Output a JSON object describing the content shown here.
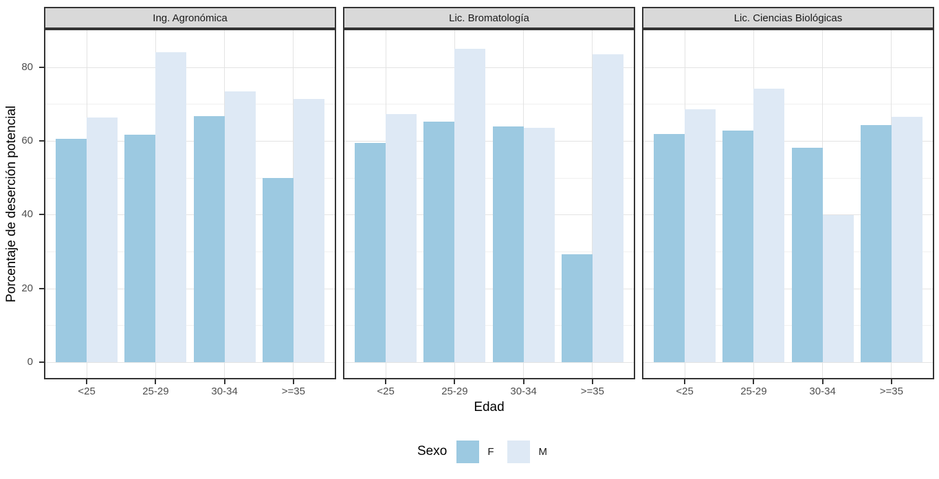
{
  "chart_data": {
    "type": "bar",
    "title": "",
    "x_title": "Edad",
    "y_title": "Porcentaje de deserción potencial",
    "categories": [
      "<25",
      "25-29",
      "30-34",
      ">=35"
    ],
    "y_ticks": [
      0,
      20,
      40,
      60,
      80
    ],
    "y_minor_ticks": [
      10,
      30,
      50,
      70
    ],
    "ylim": [
      -4.25,
      90
    ],
    "grid": "major-and-minor",
    "legend_position": "bottom",
    "legend": {
      "title": "Sexo",
      "entries": [
        {
          "label": "F",
          "color": "#9cc9e1"
        },
        {
          "label": "M",
          "color": "#dee9f5"
        }
      ]
    },
    "facets": [
      {
        "label": "Ing. Agronómica",
        "series": [
          {
            "name": "F",
            "values": [
              60.6,
              61.6,
              66.8,
              49.9
            ]
          },
          {
            "name": "M",
            "values": [
              66.3,
              84.0,
              73.4,
              71.3
            ]
          }
        ]
      },
      {
        "label": "Lic. Bromatología",
        "series": [
          {
            "name": "F",
            "values": [
              59.4,
              65.2,
              64.0,
              29.3
            ]
          },
          {
            "name": "M",
            "values": [
              67.3,
              85.0,
              63.5,
              83.4
            ]
          }
        ]
      },
      {
        "label": "Lic. Ciencias Biológicas",
        "series": [
          {
            "name": "F",
            "values": [
              61.9,
              62.8,
              58.1,
              64.3
            ]
          },
          {
            "name": "M",
            "values": [
              68.5,
              74.1,
              39.9,
              66.6
            ]
          }
        ]
      }
    ],
    "colors": {
      "F": "#9cc9e1",
      "M": "#dee9f5",
      "strip_background": "#d9d9d9",
      "panel_border": "#333333",
      "grid_major": "#e3e3e3",
      "grid_minor": "#f0f0f0",
      "tick_text": "#4d4d4d"
    }
  }
}
